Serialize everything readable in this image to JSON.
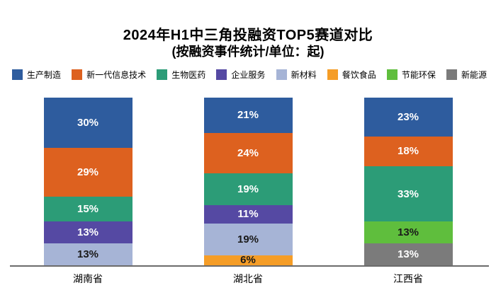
{
  "chart_data": {
    "type": "bar",
    "stacked": true,
    "orientation": "vertical",
    "title": "2024年H1中三角投融资TOP5赛道对比",
    "subtitle": "(按融资事件统计/单位：起)",
    "categories": [
      "湖南省",
      "湖北省",
      "江西省"
    ],
    "value_unit": "%",
    "ylim": [
      0,
      100
    ],
    "grid": false,
    "legend_position": "top",
    "segment_order": "top-to-bottom",
    "series": [
      {
        "name": "生产制造",
        "color": "#2E5C9E",
        "values": [
          30,
          21,
          23
        ]
      },
      {
        "name": "新一代信息技术",
        "color": "#DD611F",
        "values": [
          29,
          24,
          18
        ]
      },
      {
        "name": "生物医药",
        "color": "#2C9C77",
        "values": [
          15,
          19,
          33
        ]
      },
      {
        "name": "企业服务",
        "color": "#5549A3",
        "values": [
          13,
          11,
          null
        ]
      },
      {
        "name": "新材料",
        "color": "#A6B4D6",
        "values": [
          13,
          19,
          null
        ]
      },
      {
        "name": "餐饮食品",
        "color": "#F59D27",
        "values": [
          null,
          6,
          null
        ]
      },
      {
        "name": "节能环保",
        "color": "#5FBE3D",
        "values": [
          null,
          null,
          13
        ]
      },
      {
        "name": "新能源",
        "color": "#7B7B7B",
        "values": [
          null,
          null,
          13
        ]
      }
    ],
    "axis_line_color": "#6B6B6B",
    "background_color": "#FFFFFF"
  }
}
